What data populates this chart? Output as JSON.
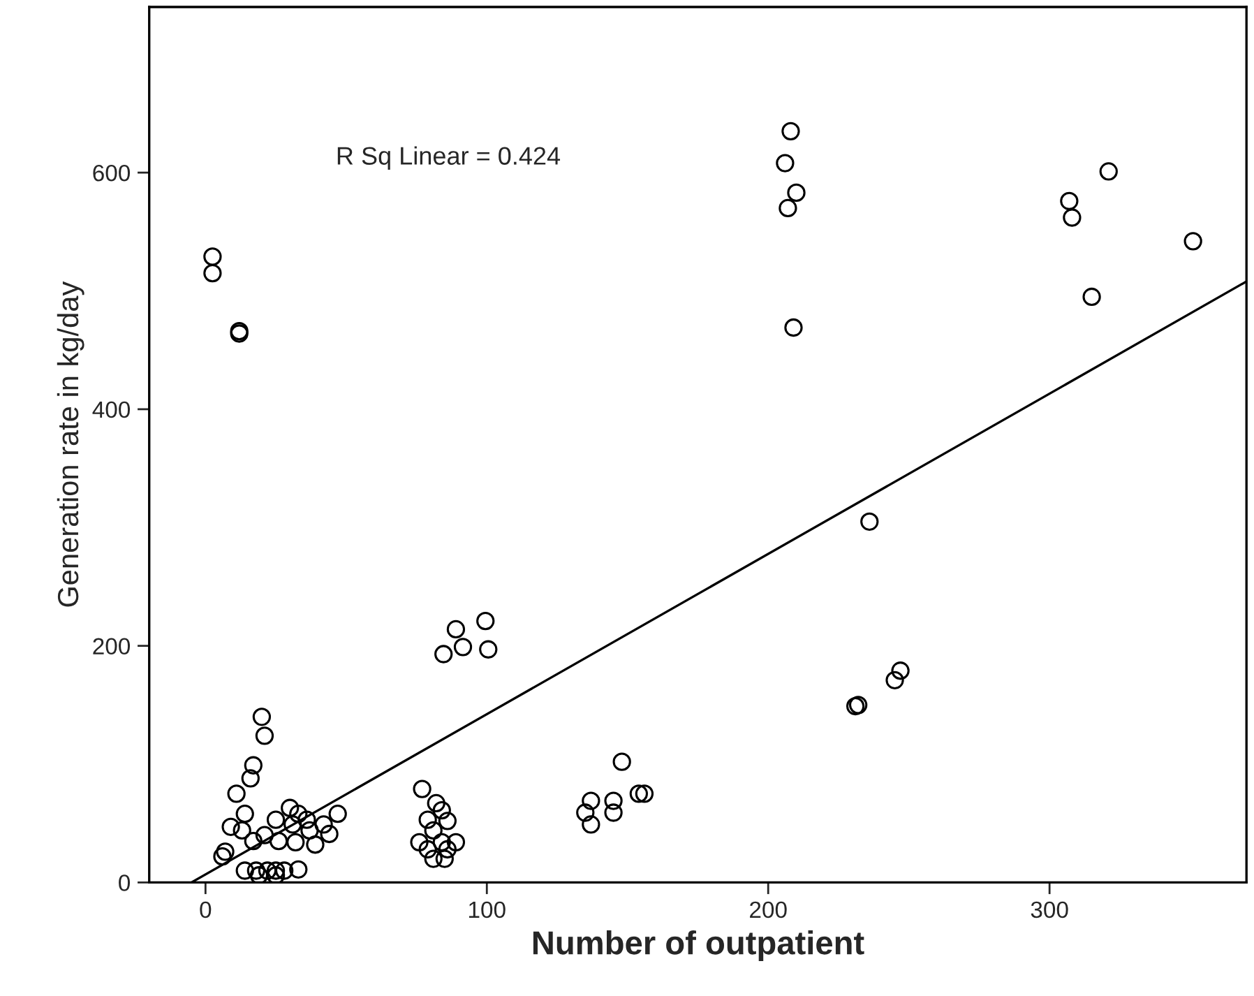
{
  "chart_data": {
    "type": "scatter",
    "xlabel": "Number of outpatient",
    "ylabel": "Generation rate in kg/day",
    "annotations": [
      "R Sq Linear = 0.424"
    ],
    "xlim": [
      -20,
      370
    ],
    "ylim": [
      0,
      740
    ],
    "xticks": [
      0,
      100,
      200,
      300
    ],
    "yticks": [
      0,
      200,
      400,
      600
    ],
    "grid": false,
    "legend": false,
    "marker": "circle",
    "series": [
      {
        "color": "#000000",
        "x": [
          208,
          206,
          210,
          207,
          209,
          321,
          307,
          308,
          351,
          315,
          2.5,
          2.5,
          12,
          12,
          236,
          247,
          245,
          232,
          231,
          89,
          99.5,
          91.5,
          84.6,
          100.5,
          148,
          137,
          145,
          154,
          156,
          135,
          145,
          137,
          77,
          82,
          84,
          79,
          86,
          81,
          76,
          84,
          89,
          79,
          86,
          81,
          85,
          20,
          21,
          17,
          16,
          11,
          14,
          9,
          13,
          7,
          6,
          14,
          18,
          22,
          25,
          28,
          33,
          19,
          25,
          25,
          30,
          33,
          36,
          31,
          26,
          32,
          37,
          42,
          47,
          44,
          39,
          21,
          17
        ],
        "values": [
          635,
          608,
          583,
          570,
          469,
          601,
          576,
          562,
          542,
          495,
          529,
          515,
          464,
          466,
          305,
          179,
          171,
          150,
          149,
          214,
          221,
          199,
          193,
          197,
          102,
          69,
          69,
          75,
          75,
          59,
          59,
          49,
          79,
          67,
          61,
          53,
          52,
          44,
          34,
          34,
          34,
          28,
          28,
          20,
          20,
          140,
          124,
          99,
          88,
          75,
          58,
          47,
          44,
          26,
          22,
          10,
          10,
          10,
          10,
          10,
          11,
          6,
          6,
          53,
          63,
          58,
          53,
          49,
          35,
          34,
          44,
          49,
          58,
          41,
          32,
          40,
          35
        ]
      },
      {
        "type": "line",
        "color": "#000000",
        "marker": "none",
        "x": [
          -5,
          370
        ],
        "values": [
          0,
          508
        ]
      }
    ]
  }
}
